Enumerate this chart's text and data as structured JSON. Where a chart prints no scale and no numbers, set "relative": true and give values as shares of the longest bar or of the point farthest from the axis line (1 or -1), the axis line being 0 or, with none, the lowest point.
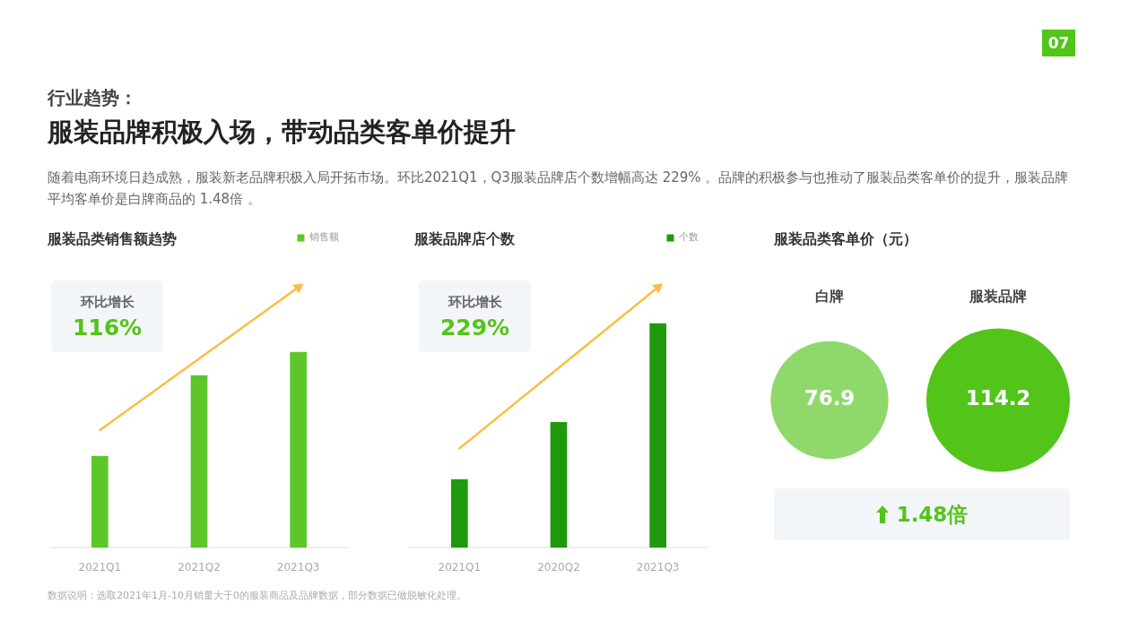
{
  "chart_data": [
    {
      "type": "other",
      "subtitle": "行业趋势：",
      "title": "服装品牌积极入场，带动品类客单价提升",
      "annotations": [
        "随着电商环境日趋成熟，服装新老品牌积极入局开拓市场。环比2021Q1，Q3服装品牌店个数增幅高达 229% 。品牌的积极参与也推动了服装品类客单价的提升，服装品牌平均客单价是白牌商品的 1.48倍 。",
        "数据说明：选取2021年1月-10月销量大于0的服装商品及品牌数据，部分数据已做脱敏化处理。",
        "07"
      ]
    },
    {
      "type": "bar",
      "title": "服装品类销售额趋势",
      "categories": [
        "2021Q1",
        "2021Q2",
        "2021Q3"
      ],
      "series": [
        {
          "name": "销售额",
          "color": "#5cc62a",
          "values": [
            0.35,
            0.66,
            0.75
          ]
        },
        {
          "type": "line",
          "x": [
            "2021Q1",
            "2021Q3"
          ],
          "values": [
            0.45,
            1
          ],
          "color": "#fbbd41",
          "marker": "triangle"
        }
      ],
      "relative": true,
      "legend": "top right",
      "annotations": [
        "环比增长",
        "116%"
      ]
    },
    {
      "type": "bar",
      "title": "服装品牌店个数",
      "categories": [
        "2021Q1",
        "2020Q2",
        "2021Q3"
      ],
      "series": [
        {
          "name": "个数",
          "color": "#1f9a0c",
          "values": [
            0.26,
            0.48,
            0.86
          ]
        },
        {
          "type": "line",
          "x": [
            "2021Q1",
            "2021Q3"
          ],
          "values": [
            0.38,
            1
          ],
          "color": "#fbbd41",
          "marker": "triangle"
        }
      ],
      "relative": true,
      "legend": "top right",
      "annotations": [
        "环比增长",
        "229%"
      ]
    },
    {
      "type": "other",
      "title": "服装品类客单价（元）",
      "categories": [
        "白牌",
        "服装品牌"
      ],
      "values": [
        76.9,
        114.2
      ],
      "colors": [
        "#8fd86c",
        "#52c41a"
      ],
      "data_labels": true,
      "annotations": [
        "1.48倍"
      ]
    }
  ]
}
